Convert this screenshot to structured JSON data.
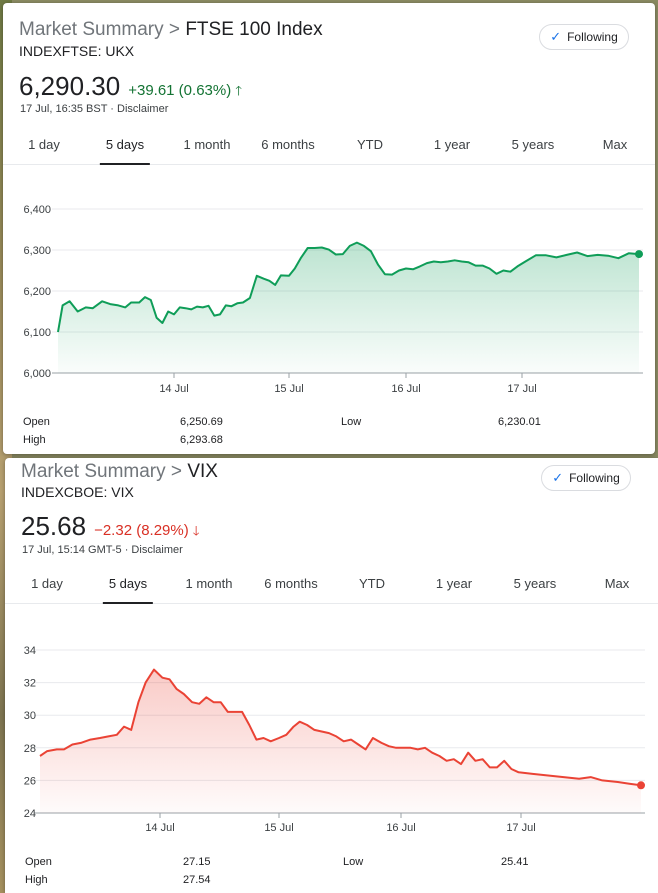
{
  "colors": {
    "up": "#0f9d58",
    "down": "#ea4335",
    "following_check": "#1a73e8"
  },
  "cards": [
    {
      "crumb": "Market Summary",
      "separator": ">",
      "title": "FTSE 100 Index",
      "ticker": "INDEXFTSE: UKX",
      "follow_label": "Following",
      "price": "6,290.30",
      "change": "+39.61 (0.63%)",
      "direction": "up",
      "arrow": "🡑",
      "timestamp": "17 Jul, 16:35 BST · Disclaimer",
      "tabs": [
        "1 day",
        "5 days",
        "1 month",
        "6 months",
        "YTD",
        "1 year",
        "5 years",
        "Max"
      ],
      "active_tab": "5 days",
      "stats": {
        "open_label": "Open",
        "open": "6,250.69",
        "high_label": "High",
        "high": "6,293.68",
        "low_label": "Low",
        "low": "6,230.01"
      }
    },
    {
      "crumb": "Market Summary",
      "separator": ">",
      "title": "VIX",
      "ticker": "INDEXCBOE: VIX",
      "follow_label": "Following",
      "price": "25.68",
      "change": "−2.32 (8.29%)",
      "direction": "down",
      "arrow": "🡓",
      "timestamp": "17 Jul, 15:14 GMT-5 · Disclaimer",
      "tabs": [
        "1 day",
        "5 days",
        "1 month",
        "6 months",
        "YTD",
        "1 year",
        "5 years",
        "Max"
      ],
      "active_tab": "5 days",
      "stats": {
        "open_label": "Open",
        "open": "27.15",
        "high_label": "High",
        "high": "27.54",
        "low_label": "Low",
        "low": "25.41"
      }
    }
  ],
  "chart_data": [
    {
      "type": "area",
      "x_range": [
        0,
        5
      ],
      "xticks": [
        {
          "x": 1,
          "label": "14 Jul"
        },
        {
          "x": 2,
          "label": "15 Jul"
        },
        {
          "x": 3,
          "label": "16 Jul"
        },
        {
          "x": 4,
          "label": "17 Jul"
        }
      ],
      "yticks": [
        "6,000",
        "6,100",
        "6,200",
        "6,300",
        "6,400"
      ],
      "ylim": [
        6000,
        6400
      ],
      "grid": true,
      "series": [
        {
          "color": "#0f9d58",
          "points": [
            [
              0.0,
              6100
            ],
            [
              0.04,
              6165
            ],
            [
              0.1,
              6175
            ],
            [
              0.17,
              6150
            ],
            [
              0.24,
              6160
            ],
            [
              0.3,
              6158
            ],
            [
              0.38,
              6175
            ],
            [
              0.45,
              6168
            ],
            [
              0.52,
              6165
            ],
            [
              0.58,
              6160
            ],
            [
              0.63,
              6172
            ],
            [
              0.7,
              6172
            ],
            [
              0.75,
              6185
            ],
            [
              0.8,
              6178
            ],
            [
              0.85,
              6135
            ],
            [
              0.9,
              6122
            ],
            [
              0.95,
              6150
            ],
            [
              1.0,
              6143
            ],
            [
              1.05,
              6160
            ],
            [
              1.1,
              6158
            ],
            [
              1.15,
              6155
            ],
            [
              1.2,
              6162
            ],
            [
              1.25,
              6160
            ],
            [
              1.3,
              6164
            ],
            [
              1.35,
              6140
            ],
            [
              1.4,
              6143
            ],
            [
              1.45,
              6165
            ],
            [
              1.5,
              6163
            ],
            [
              1.55,
              6170
            ],
            [
              1.6,
              6172
            ],
            [
              1.66,
              6183
            ],
            [
              1.72,
              6237
            ],
            [
              1.78,
              6230
            ],
            [
              1.83,
              6225
            ],
            [
              1.88,
              6215
            ],
            [
              1.93,
              6238
            ],
            [
              2.0,
              6237
            ],
            [
              2.05,
              6255
            ],
            [
              2.1,
              6280
            ],
            [
              2.16,
              6305
            ],
            [
              2.22,
              6305
            ],
            [
              2.28,
              6306
            ],
            [
              2.34,
              6301
            ],
            [
              2.4,
              6289
            ],
            [
              2.46,
              6290
            ],
            [
              2.52,
              6310
            ],
            [
              2.58,
              6318
            ],
            [
              2.64,
              6310
            ],
            [
              2.7,
              6297
            ],
            [
              2.76,
              6265
            ],
            [
              2.82,
              6241
            ],
            [
              2.88,
              6240
            ],
            [
              2.94,
              6250
            ],
            [
              3.0,
              6255
            ],
            [
              3.06,
              6253
            ],
            [
              3.12,
              6260
            ],
            [
              3.18,
              6268
            ],
            [
              3.24,
              6272
            ],
            [
              3.3,
              6270
            ],
            [
              3.36,
              6272
            ],
            [
              3.42,
              6275
            ],
            [
              3.48,
              6272
            ],
            [
              3.54,
              6270
            ],
            [
              3.6,
              6262
            ],
            [
              3.66,
              6262
            ],
            [
              3.72,
              6255
            ],
            [
              3.78,
              6242
            ],
            [
              3.84,
              6250
            ],
            [
              3.9,
              6247
            ],
            [
              3.96,
              6260
            ],
            [
              4.02,
              6272
            ],
            [
              4.08,
              6287
            ],
            [
              4.14,
              6287
            ],
            [
              4.2,
              6282
            ],
            [
              4.26,
              6288
            ],
            [
              4.32,
              6294
            ],
            [
              4.38,
              6285
            ],
            [
              4.44,
              6288
            ],
            [
              4.5,
              6286
            ],
            [
              4.56,
              6280
            ],
            [
              4.62,
              6292
            ],
            [
              4.68,
              6290
            ]
          ]
        }
      ]
    },
    {
      "type": "area",
      "x_range": [
        0,
        5
      ],
      "xticks": [
        {
          "x": 1,
          "label": "14 Jul"
        },
        {
          "x": 2,
          "label": "15 Jul"
        },
        {
          "x": 3,
          "label": "16 Jul"
        },
        {
          "x": 4,
          "label": "17 Jul"
        }
      ],
      "yticks": [
        "24",
        "26",
        "28",
        "30",
        "32",
        "34"
      ],
      "ylim": [
        24,
        34
      ],
      "grid": true,
      "series": [
        {
          "color": "#ea4335",
          "points": [
            [
              0.0,
              27.5
            ],
            [
              0.06,
              27.8
            ],
            [
              0.14,
              27.9
            ],
            [
              0.2,
              27.9
            ],
            [
              0.27,
              28.2
            ],
            [
              0.34,
              28.3
            ],
            [
              0.42,
              28.5
            ],
            [
              0.5,
              28.6
            ],
            [
              0.57,
              28.7
            ],
            [
              0.64,
              28.8
            ],
            [
              0.7,
              29.3
            ],
            [
              0.76,
              29.1
            ],
            [
              0.82,
              30.8
            ],
            [
              0.88,
              32.0
            ],
            [
              0.95,
              32.8
            ],
            [
              1.02,
              32.3
            ],
            [
              1.08,
              32.2
            ],
            [
              1.14,
              31.6
            ],
            [
              1.2,
              31.3
            ],
            [
              1.27,
              30.8
            ],
            [
              1.33,
              30.7
            ],
            [
              1.39,
              31.1
            ],
            [
              1.45,
              30.8
            ],
            [
              1.51,
              30.8
            ],
            [
              1.57,
              30.2
            ],
            [
              1.63,
              30.2
            ],
            [
              1.69,
              30.2
            ],
            [
              1.75,
              29.4
            ],
            [
              1.81,
              28.5
            ],
            [
              1.87,
              28.6
            ],
            [
              1.93,
              28.4
            ],
            [
              2.0,
              28.6
            ],
            [
              2.06,
              28.8
            ],
            [
              2.12,
              29.3
            ],
            [
              2.17,
              29.6
            ],
            [
              2.23,
              29.4
            ],
            [
              2.29,
              29.1
            ],
            [
              2.35,
              29.0
            ],
            [
              2.41,
              28.9
            ],
            [
              2.47,
              28.7
            ],
            [
              2.53,
              28.4
            ],
            [
              2.59,
              28.5
            ],
            [
              2.65,
              28.2
            ],
            [
              2.71,
              27.9
            ],
            [
              2.77,
              28.6
            ],
            [
              2.84,
              28.3
            ],
            [
              2.9,
              28.1
            ],
            [
              2.96,
              28.0
            ],
            [
              3.02,
              28.0
            ],
            [
              3.08,
              28.0
            ],
            [
              3.14,
              27.9
            ],
            [
              3.2,
              28.0
            ],
            [
              3.26,
              27.7
            ],
            [
              3.32,
              27.5
            ],
            [
              3.38,
              27.2
            ],
            [
              3.44,
              27.3
            ],
            [
              3.5,
              27.0
            ],
            [
              3.56,
              27.7
            ],
            [
              3.62,
              27.2
            ],
            [
              3.68,
              27.3
            ],
            [
              3.74,
              26.8
            ],
            [
              3.8,
              26.8
            ],
            [
              3.86,
              27.2
            ],
            [
              3.92,
              26.7
            ],
            [
              3.98,
              26.5
            ],
            [
              4.06,
              26.4
            ],
            [
              4.14,
              26.3
            ],
            [
              4.22,
              26.2
            ],
            [
              4.3,
              26.1
            ],
            [
              4.36,
              26.2
            ],
            [
              4.42,
              26.0
            ],
            [
              4.5,
              25.9
            ],
            [
              4.56,
              25.8
            ],
            [
              4.62,
              25.7
            ]
          ]
        }
      ]
    }
  ]
}
